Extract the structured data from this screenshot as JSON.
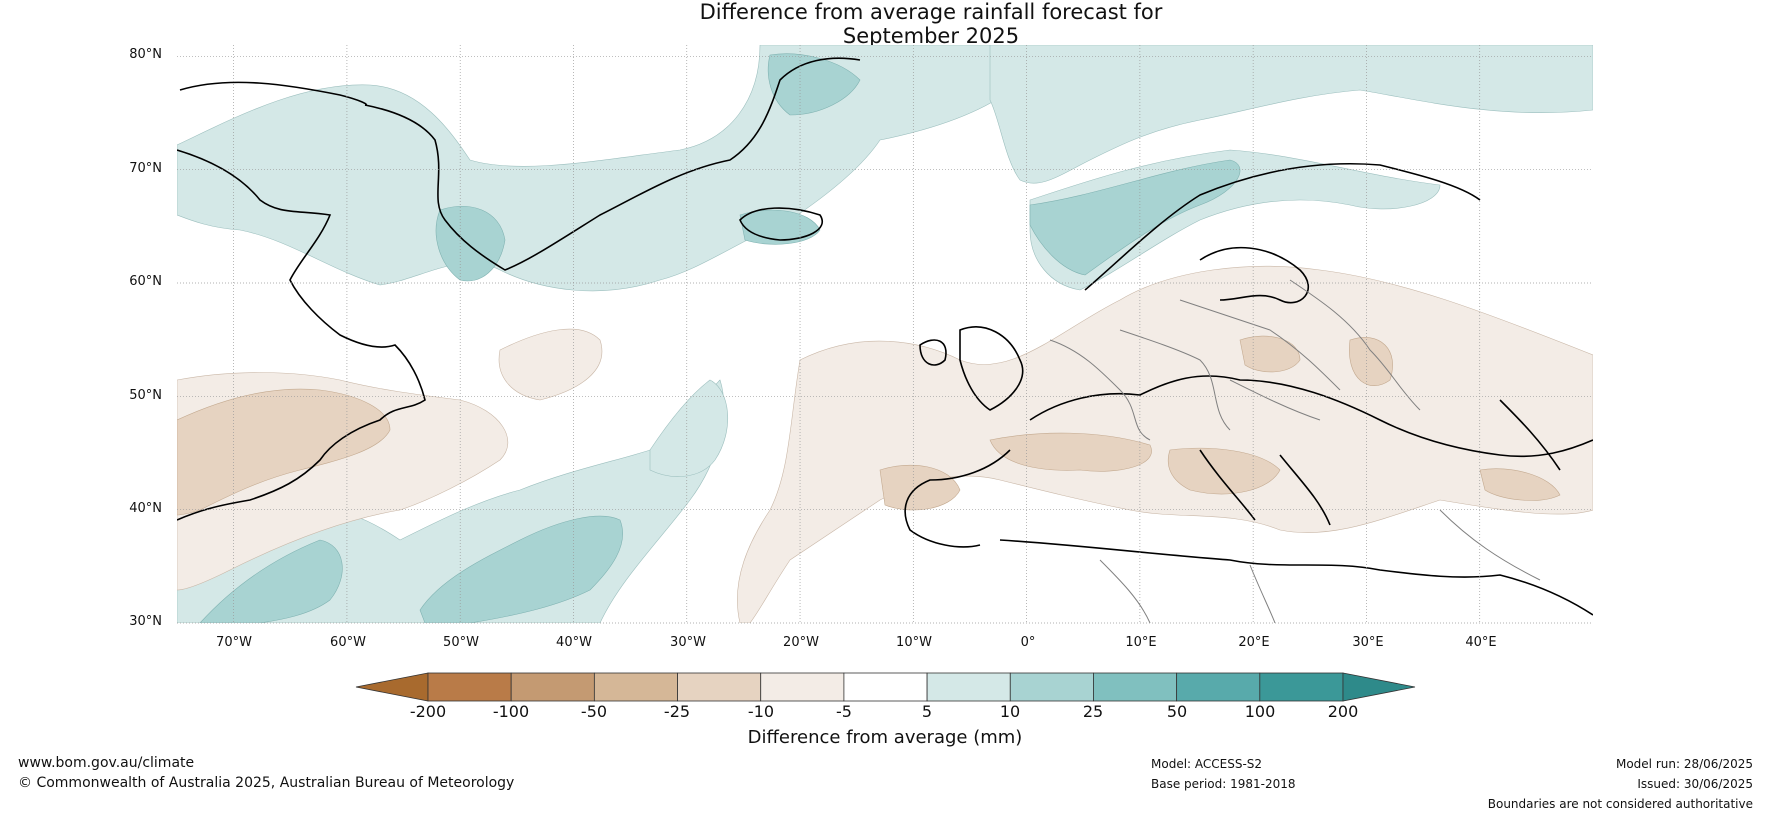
{
  "title_line1": "Difference from average rainfall forecast for",
  "title_line2": "September 2025",
  "map": {
    "lat_labels": [
      "80°N",
      "70°N",
      "60°N",
      "50°N",
      "40°N",
      "30°N"
    ],
    "lon_labels": [
      "70°W",
      "60°W",
      "50°W",
      "40°W",
      "30°W",
      "20°W",
      "10°W",
      "0°",
      "10°E",
      "20°E",
      "30°E",
      "40°E"
    ],
    "extent": {
      "lon_min": -75,
      "lon_max": 50,
      "lat_min": 30,
      "lat_max": 81
    },
    "anomaly_regions": [
      {
        "name": "Greenland / Labrador Sea",
        "category": "5 to 10"
      },
      {
        "name": "Southern Greenland",
        "category": "10 to 25"
      },
      {
        "name": "Norway coast",
        "category": "10 to 25"
      },
      {
        "name": "Subtropical west Atlantic",
        "category": "10 to 25"
      },
      {
        "name": "Northeast US / Atlantic Canada",
        "category": "-25 to -10"
      },
      {
        "name": "Iberia",
        "category": "-25 to -10"
      },
      {
        "name": "France / Alps",
        "category": "-25 to -10"
      },
      {
        "name": "Balkans",
        "category": "-25 to -10"
      },
      {
        "name": "Eastern Europe",
        "category": "-10 to -5"
      }
    ]
  },
  "colorbar": {
    "ticks": [
      "-200",
      "-100",
      "-50",
      "-25",
      "-10",
      "-5",
      "5",
      "10",
      "25",
      "50",
      "100",
      "200"
    ],
    "colors": [
      "#a86a2e",
      "#b97b48",
      "#c49a72",
      "#d5b797",
      "#e6d3c1",
      "#f3ece6",
      "#ffffff",
      "#d4e8e7",
      "#a8d3d2",
      "#80c0bf",
      "#58aaab",
      "#3b9898",
      "#2e8a8a"
    ],
    "label": "Difference from average (mm)"
  },
  "footer": {
    "website": "www.bom.gov.au/climate",
    "copyright": "© Commonwealth of Australia 2025, Australian Bureau of Meteorology",
    "model": "Model: ACCESS-S2",
    "base_period": "Base period: 1981-2018",
    "model_run": "Model run: 28/06/2025",
    "issued": "Issued: 30/06/2025",
    "disclaimer": "Boundaries are not considered authoritative"
  }
}
